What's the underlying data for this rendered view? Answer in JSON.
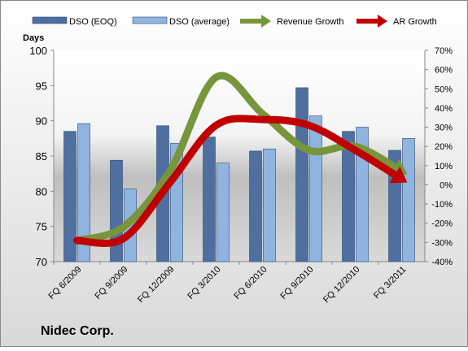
{
  "chart_data": {
    "type": "bar-line",
    "title": "Nidec Corp.",
    "y_axis_label": "Days",
    "categories": [
      "FQ 6/2009",
      "FQ 9/2009",
      "FQ 12/2009",
      "FQ 3/2010",
      "FQ 6/2010",
      "FQ 9/2010",
      "FQ 12/2010",
      "FQ 3/2011"
    ],
    "series": [
      {
        "name": "DSO (EOQ)",
        "type": "bar",
        "color": "#4f6fa0",
        "values": [
          88.5,
          84.4,
          89.3,
          87.7,
          85.7,
          94.7,
          88.5,
          85.8
        ]
      },
      {
        "name": "DSO (average)",
        "type": "bar",
        "color": "#8fb4e0",
        "values": [
          89.6,
          80.3,
          86.8,
          84.0,
          86.0,
          90.7,
          89.1,
          87.5
        ]
      },
      {
        "name": "Revenue Growth",
        "type": "line",
        "axis": "y2",
        "color": "#77963b",
        "values": [
          -29,
          -22,
          7,
          56,
          37,
          18,
          20,
          7
        ]
      },
      {
        "name": "AR Growth",
        "type": "line",
        "axis": "y2",
        "color": "#c00000",
        "values": [
          -29,
          -28,
          1,
          31,
          34,
          31,
          18,
          3
        ]
      }
    ],
    "ylim": [
      70,
      100
    ],
    "yticks": [
      70,
      75,
      80,
      85,
      90,
      95,
      100
    ],
    "y2lim": [
      -40,
      70
    ],
    "y2ticks": [
      {
        "value": -40,
        "label": "-40%"
      },
      {
        "value": -30,
        "label": "-30%"
      },
      {
        "value": -20,
        "label": "-20%"
      },
      {
        "value": -10,
        "label": "-10%"
      },
      {
        "value": 0,
        "label": "0%"
      },
      {
        "value": 10,
        "label": "10%"
      },
      {
        "value": 20,
        "label": "20%"
      },
      {
        "value": 30,
        "label": "30%"
      },
      {
        "value": 40,
        "label": "40%"
      },
      {
        "value": 50,
        "label": "50%"
      },
      {
        "value": 60,
        "label": "60%"
      },
      {
        "value": 70,
        "label": "70%"
      }
    ]
  }
}
